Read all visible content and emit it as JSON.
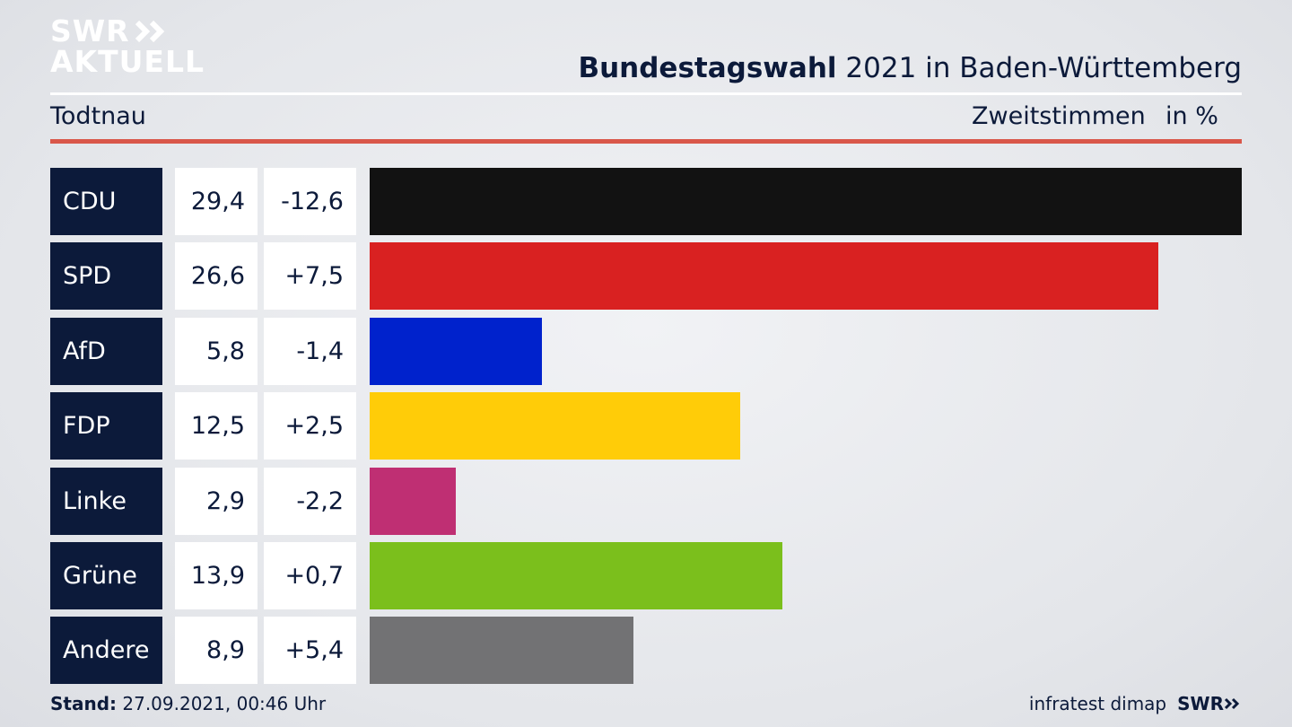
{
  "logo": {
    "line1": "SWR",
    "line2": "AKTUELL",
    "icon": "double-chevron-icon"
  },
  "header": {
    "title_bold": "Bundestagswahl",
    "title_rest": " 2021 in Baden-Württemberg"
  },
  "subheader": {
    "place": "Todtnau",
    "measure": "Zweitstimmen",
    "unit": "in %"
  },
  "chart_data": {
    "type": "bar",
    "categories": [
      "CDU",
      "SPD",
      "AfD",
      "FDP",
      "Linke",
      "Grüne",
      "Andere"
    ],
    "values": [
      29.4,
      26.6,
      5.8,
      12.5,
      2.9,
      13.9,
      8.9
    ],
    "values_label": [
      "29,4",
      "26,6",
      "5,8",
      "12,5",
      "2,9",
      "13,9",
      "8,9"
    ],
    "change": [
      -12.6,
      7.5,
      -1.4,
      2.5,
      -2.2,
      0.7,
      5.4
    ],
    "change_label": [
      "-12,6",
      "+7,5",
      "-1,4",
      "+2,5",
      "-2,2",
      "+0,7",
      "+5,4"
    ],
    "colors": [
      "#121212",
      "#d92121",
      "#0022cc",
      "#ffcc08",
      "#bf2f73",
      "#7bbf1c",
      "#727274"
    ],
    "xlim": [
      0,
      29.4
    ],
    "orientation": "horizontal"
  },
  "footer": {
    "stand_label": "Stand:",
    "stand_value": " 27.09.2021, 00:46 Uhr",
    "source": "infratest dimap",
    "brand": "SWR"
  }
}
